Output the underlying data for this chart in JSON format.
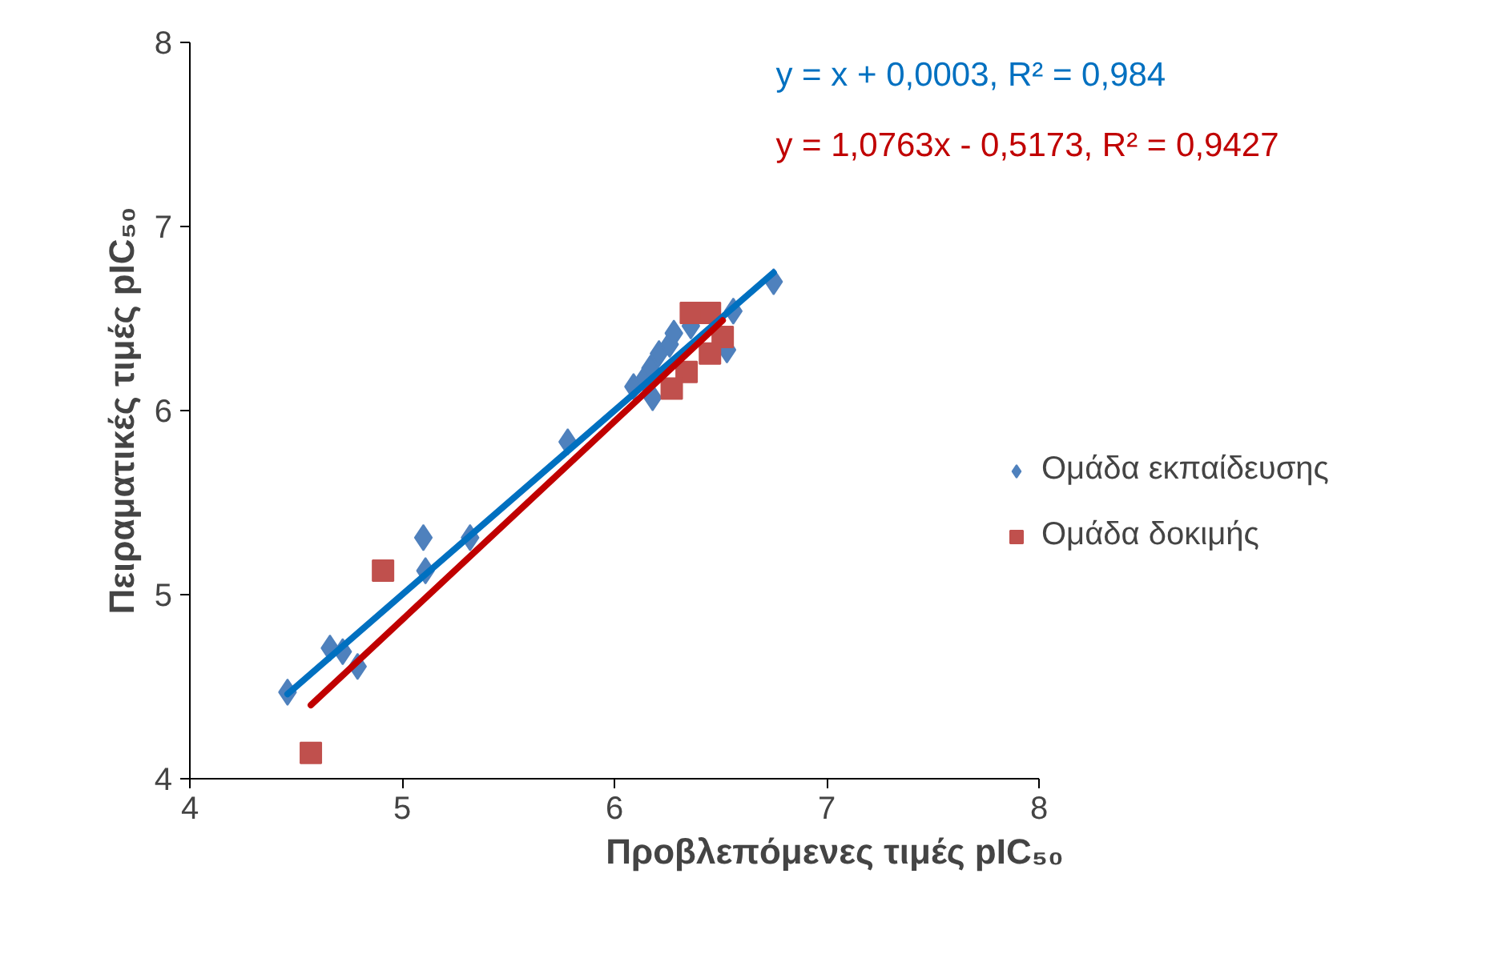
{
  "chart_data": {
    "type": "scatter",
    "xlabel": "Προβλεπόμενες τιμές pIC₅₀",
    "ylabel": "Πειραματικές τιμές pIC₅₀",
    "xlim": [
      4,
      8
    ],
    "ylim": [
      4,
      8
    ],
    "xticks": [
      4,
      5,
      6,
      7,
      8
    ],
    "yticks": [
      4,
      5,
      6,
      7,
      8
    ],
    "grid": false,
    "legend": "right",
    "annotations": [
      "y = x + 0,0003, R² = 0,984",
      "y = 1,0763x - 0,5173, R² = 0,9427"
    ],
    "series": [
      {
        "name": "Ομάδα εκπαίδευσης",
        "color": "#4f81bd",
        "marker": "diamond",
        "x": [
          4.46,
          4.66,
          4.72,
          4.79,
          5.1,
          5.11,
          5.32,
          5.78,
          6.09,
          6.14,
          6.18,
          6.17,
          6.21,
          6.26,
          6.28,
          6.36,
          6.53,
          6.56,
          6.75
        ],
        "values": [
          4.47,
          4.71,
          4.69,
          4.61,
          5.31,
          5.13,
          5.31,
          5.83,
          6.13,
          6.17,
          6.07,
          6.23,
          6.31,
          6.36,
          6.42,
          6.46,
          6.33,
          6.54,
          6.7
        ]
      },
      {
        "name": "Ομάδα δοκιμής",
        "color": "#c0504d",
        "marker": "square",
        "x": [
          4.57,
          4.91,
          6.36,
          6.45,
          6.51,
          6.45,
          6.34,
          6.27
        ],
        "values": [
          4.14,
          5.13,
          6.53,
          6.53,
          6.4,
          6.31,
          6.21,
          6.12
        ]
      },
      {
        "type": "line",
        "color": "#0070c0",
        "x": [
          4.46,
          6.75
        ],
        "values": [
          4.46,
          6.75
        ]
      },
      {
        "type": "line",
        "color": "#c00000",
        "x": [
          4.57,
          6.51
        ],
        "values": [
          4.4,
          6.49
        ]
      }
    ]
  }
}
